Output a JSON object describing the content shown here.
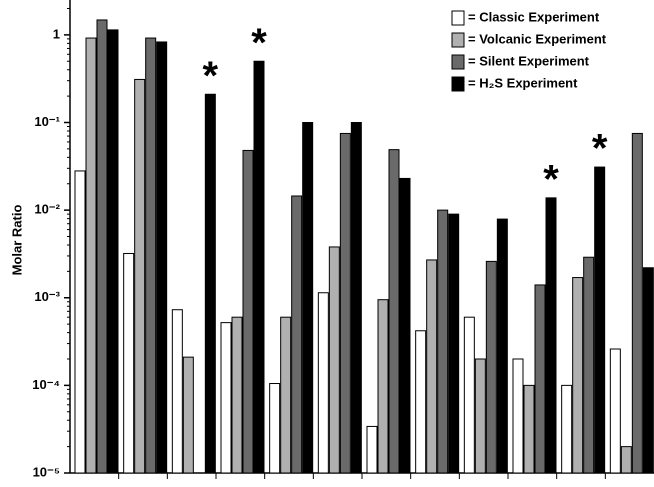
{
  "chart_data": {
    "type": "bar",
    "y_label": "Molar Ratio",
    "log_scale": true,
    "legend": "top-right",
    "categories": [
      null,
      null,
      null,
      null,
      null,
      null,
      null,
      null,
      null,
      null,
      null,
      null
    ],
    "series": [
      {
        "name": "= Classic Experiment",
        "color": "#ffffff",
        "values": [
          0.028,
          0.0032,
          0.00073,
          0.00052,
          0.000105,
          0.00114,
          3.4e-05,
          0.00042,
          0.0006,
          0.0002,
          0.0001,
          0.00026
        ]
      },
      {
        "name": "= Volcanic Experiment",
        "color": "#b0b0b0",
        "values": [
          0.92,
          0.31,
          0.00021,
          0.0006,
          0.0006,
          0.0038,
          0.00095,
          0.0027,
          0.0002,
          0.0001,
          0.0017,
          2e-05
        ]
      },
      {
        "name": "= Silent Experiment",
        "color": "#6a6a6a",
        "values": [
          1.48,
          0.92,
          null,
          0.048,
          0.0145,
          0.075,
          0.049,
          0.01,
          0.0026,
          0.0014,
          0.0029,
          0.075
        ]
      },
      {
        "name": "= H₂S Experiment",
        "color": "#000000",
        "values": [
          1.14,
          0.83,
          0.21,
          0.5,
          0.1,
          0.1,
          0.023,
          0.009,
          0.0079,
          0.0138,
          0.031,
          0.0022
        ]
      }
    ],
    "annotations": [
      "*",
      "*",
      "*",
      "*"
    ],
    "ylim": [
      1e-05,
      2.5
    ],
    "yticks": [
      {
        "value": 1e-05,
        "label": "10⁻⁵"
      },
      {
        "value": 0.0001,
        "label": "10⁻⁴"
      },
      {
        "value": 0.001,
        "label": "10⁻³"
      },
      {
        "value": 0.01,
        "label": "10⁻²"
      },
      {
        "value": 0.1,
        "label": "10⁻¹"
      },
      1
    ]
  }
}
